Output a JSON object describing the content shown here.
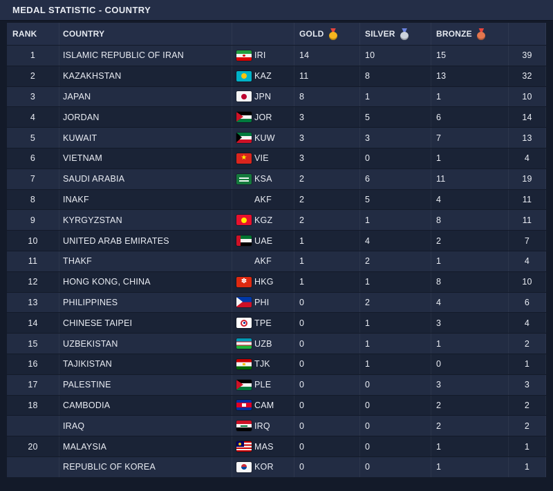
{
  "title": "MEDAL STATISTIC - COUNTRY",
  "columns": {
    "rank": "RANK",
    "country": "COUNTRY",
    "gold": "GOLD",
    "silver": "SILVER",
    "bronze": "BRONZE",
    "total": ""
  },
  "colors": {
    "gold_medal": "#f6b51e",
    "silver_medal": "#ccd3dc",
    "bronze_medal": "#e4764e"
  },
  "rows": [
    {
      "rank": "1",
      "country": "ISLAMIC REPUBLIC OF IRAN",
      "flag": "iri",
      "code": "IRI",
      "gold": 14,
      "silver": 10,
      "bronze": 15,
      "total": 39
    },
    {
      "rank": "2",
      "country": "KAZAKHSTAN",
      "flag": "kaz",
      "code": "KAZ",
      "gold": 11,
      "silver": 8,
      "bronze": 13,
      "total": 32
    },
    {
      "rank": "3",
      "country": "JAPAN",
      "flag": "jpn",
      "code": "JPN",
      "gold": 8,
      "silver": 1,
      "bronze": 1,
      "total": 10
    },
    {
      "rank": "4",
      "country": "JORDAN",
      "flag": "jor",
      "code": "JOR",
      "gold": 3,
      "silver": 5,
      "bronze": 6,
      "total": 14
    },
    {
      "rank": "5",
      "country": "KUWAIT",
      "flag": "kuw",
      "code": "KUW",
      "gold": 3,
      "silver": 3,
      "bronze": 7,
      "total": 13
    },
    {
      "rank": "6",
      "country": "VIETNAM",
      "flag": "vie",
      "code": "VIE",
      "gold": 3,
      "silver": 0,
      "bronze": 1,
      "total": 4
    },
    {
      "rank": "7",
      "country": "SAUDI ARABIA",
      "flag": "ksa",
      "code": "KSA",
      "gold": 2,
      "silver": 6,
      "bronze": 11,
      "total": 19
    },
    {
      "rank": "8",
      "country": "INAKF",
      "flag": "",
      "code": "AKF",
      "gold": 2,
      "silver": 5,
      "bronze": 4,
      "total": 11
    },
    {
      "rank": "9",
      "country": "KYRGYZSTAN",
      "flag": "kgz",
      "code": "KGZ",
      "gold": 2,
      "silver": 1,
      "bronze": 8,
      "total": 11
    },
    {
      "rank": "10",
      "country": "UNITED ARAB EMIRATES",
      "flag": "uae",
      "code": "UAE",
      "gold": 1,
      "silver": 4,
      "bronze": 2,
      "total": 7
    },
    {
      "rank": "11",
      "country": "THAKF",
      "flag": "",
      "code": "AKF",
      "gold": 1,
      "silver": 2,
      "bronze": 1,
      "total": 4
    },
    {
      "rank": "12",
      "country": "HONG KONG, CHINA",
      "flag": "hkg",
      "code": "HKG",
      "gold": 1,
      "silver": 1,
      "bronze": 8,
      "total": 10
    },
    {
      "rank": "13",
      "country": "PHILIPPINES",
      "flag": "phi",
      "code": "PHI",
      "gold": 0,
      "silver": 2,
      "bronze": 4,
      "total": 6
    },
    {
      "rank": "14",
      "country": "CHINESE TAIPEI",
      "flag": "tpe",
      "code": "TPE",
      "gold": 0,
      "silver": 1,
      "bronze": 3,
      "total": 4
    },
    {
      "rank": "15",
      "country": "UZBEKISTAN",
      "flag": "uzb",
      "code": "UZB",
      "gold": 0,
      "silver": 1,
      "bronze": 1,
      "total": 2
    },
    {
      "rank": "16",
      "country": "TAJIKISTAN",
      "flag": "tjk",
      "code": "TJK",
      "gold": 0,
      "silver": 1,
      "bronze": 0,
      "total": 1
    },
    {
      "rank": "17",
      "country": "PALESTINE",
      "flag": "ple",
      "code": "PLE",
      "gold": 0,
      "silver": 0,
      "bronze": 3,
      "total": 3
    },
    {
      "rank": "18",
      "country": "CAMBODIA",
      "flag": "cam",
      "code": "CAM",
      "gold": 0,
      "silver": 0,
      "bronze": 2,
      "total": 2
    },
    {
      "rank": "",
      "country": "IRAQ",
      "flag": "irq",
      "code": "IRQ",
      "gold": 0,
      "silver": 0,
      "bronze": 2,
      "total": 2
    },
    {
      "rank": "20",
      "country": "MALAYSIA",
      "flag": "mas",
      "code": "MAS",
      "gold": 0,
      "silver": 0,
      "bronze": 1,
      "total": 1
    },
    {
      "rank": "",
      "country": "REPUBLIC OF KOREA",
      "flag": "kor",
      "code": "KOR",
      "gold": 0,
      "silver": 0,
      "bronze": 1,
      "total": 1
    }
  ]
}
